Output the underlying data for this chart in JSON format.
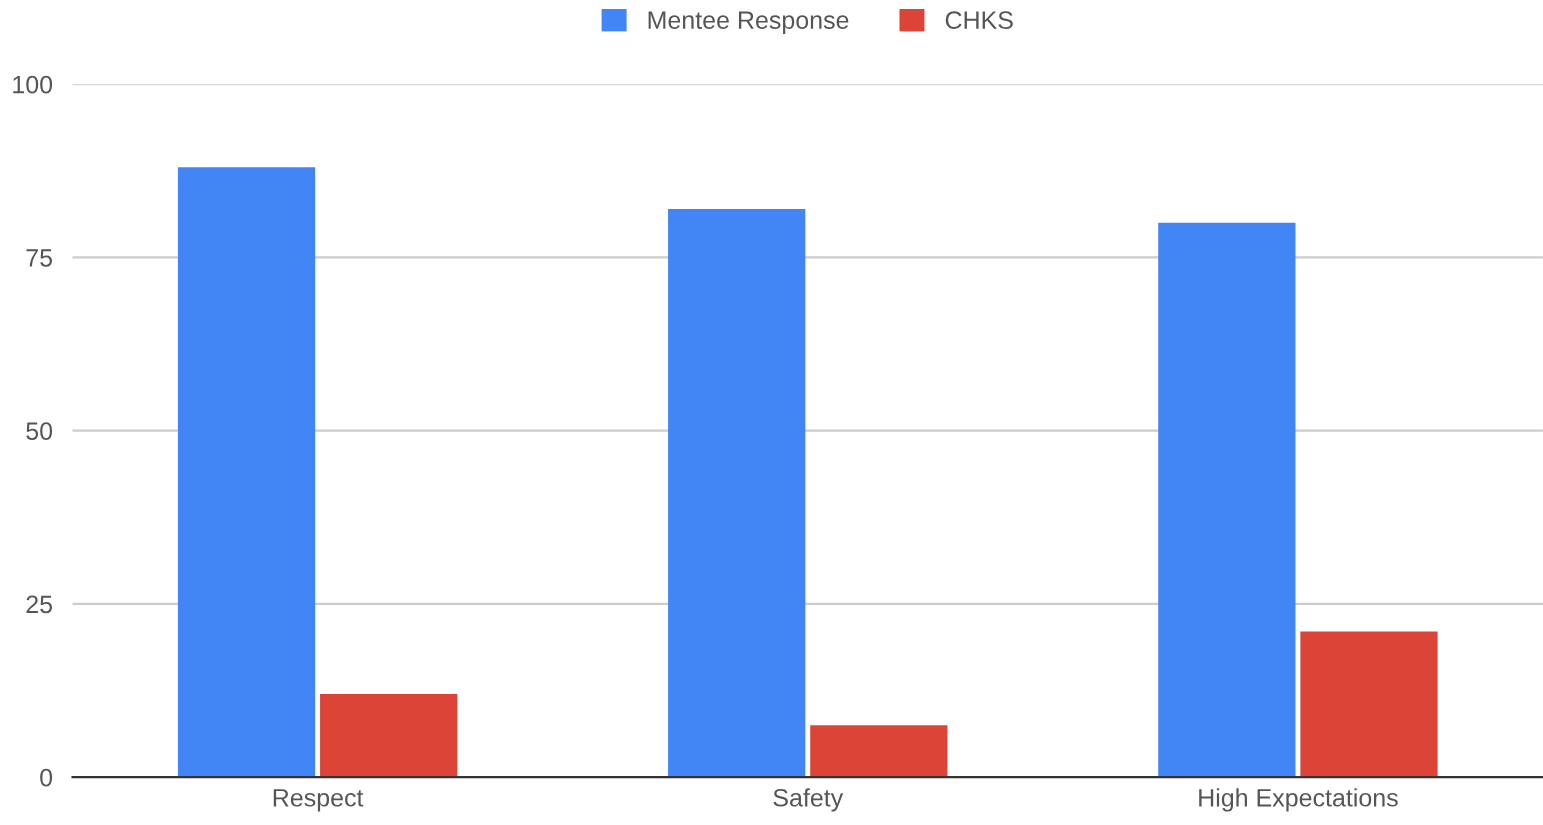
{
  "chart_data": {
    "type": "bar",
    "categories": [
      "Respect",
      "Safety",
      "High Expectations"
    ],
    "series": [
      {
        "name": "Mentee Response",
        "color": "#4285f4",
        "values": [
          88,
          82,
          80
        ]
      },
      {
        "name": "CHKS",
        "color": "#db4437",
        "values": [
          12,
          7.5,
          21
        ]
      }
    ],
    "ylim": [
      0,
      100
    ],
    "yticks": [
      0,
      25,
      50,
      75,
      100
    ],
    "grid": "y",
    "legend": "top"
  }
}
